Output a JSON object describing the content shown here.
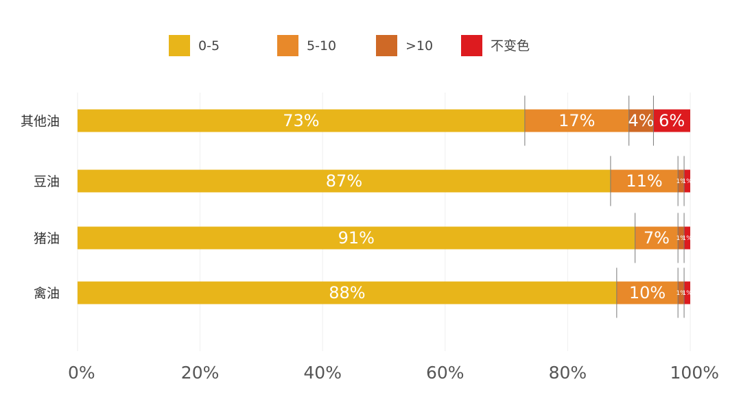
{
  "chart_data": {
    "type": "bar",
    "orientation": "horizontal",
    "stacked": true,
    "title": "",
    "xlabel": "",
    "ylabel": "",
    "xlim": [
      0,
      100
    ],
    "x_ticks": [
      "0%",
      "20%",
      "40%",
      "60%",
      "80%",
      "100%"
    ],
    "grid": true,
    "legend": "top",
    "categories": [
      "其他油",
      "豆油",
      "猪油",
      "禽油"
    ],
    "series": [
      {
        "name": "0-5",
        "color": "#E8B51A",
        "values": [
          73,
          87,
          91,
          88
        ],
        "labels": [
          "73%",
          "87%",
          "91%",
          "88%"
        ]
      },
      {
        "name": "5-10",
        "color": "#E8892A",
        "values": [
          17,
          11,
          7,
          10
        ],
        "labels": [
          "17%",
          "11%",
          "7%",
          "10%"
        ]
      },
      {
        "name": ">10",
        "color": "#CF6926",
        "values": [
          4,
          1,
          1,
          1
        ],
        "labels": [
          "4%",
          "1%",
          "1%",
          "1%"
        ]
      },
      {
        "name": "不变色",
        "color": "#DD1B1F",
        "values": [
          6,
          1,
          1,
          1
        ],
        "labels": [
          "6%",
          "1%",
          "1%",
          "1%"
        ]
      }
    ]
  }
}
